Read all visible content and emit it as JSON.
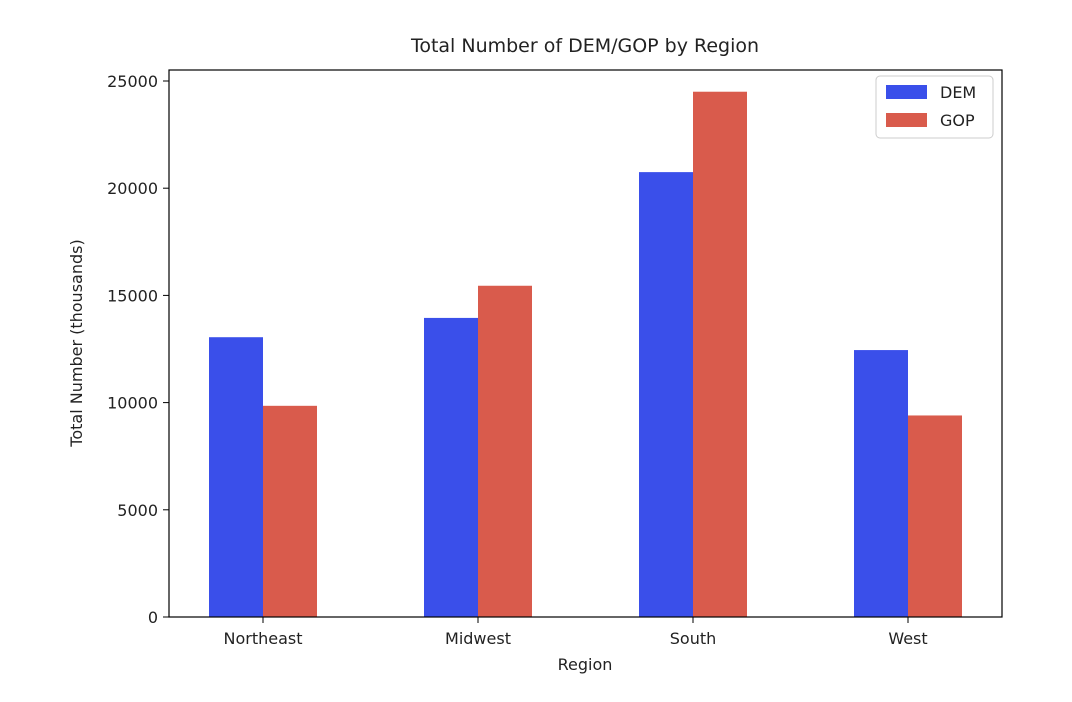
{
  "chart_data": {
    "type": "bar",
    "title": "Total Number of DEM/GOP by Region",
    "xlabel": "Region",
    "ylabel": "Total Number (thousands)",
    "categories": [
      "Northeast",
      "Midwest",
      "South",
      "West"
    ],
    "ylim": [
      0,
      25000
    ],
    "yticks": [
      0,
      5000,
      10000,
      15000,
      20000,
      25000
    ],
    "series": [
      {
        "name": "DEM",
        "color": "#3a4fea",
        "values": [
          13050,
          13950,
          20750,
          12450
        ]
      },
      {
        "name": "GOP",
        "color": "#d95b4c",
        "values": [
          9850,
          15450,
          24500,
          9400
        ]
      }
    ],
    "legend": "top-right",
    "grid": false
  }
}
